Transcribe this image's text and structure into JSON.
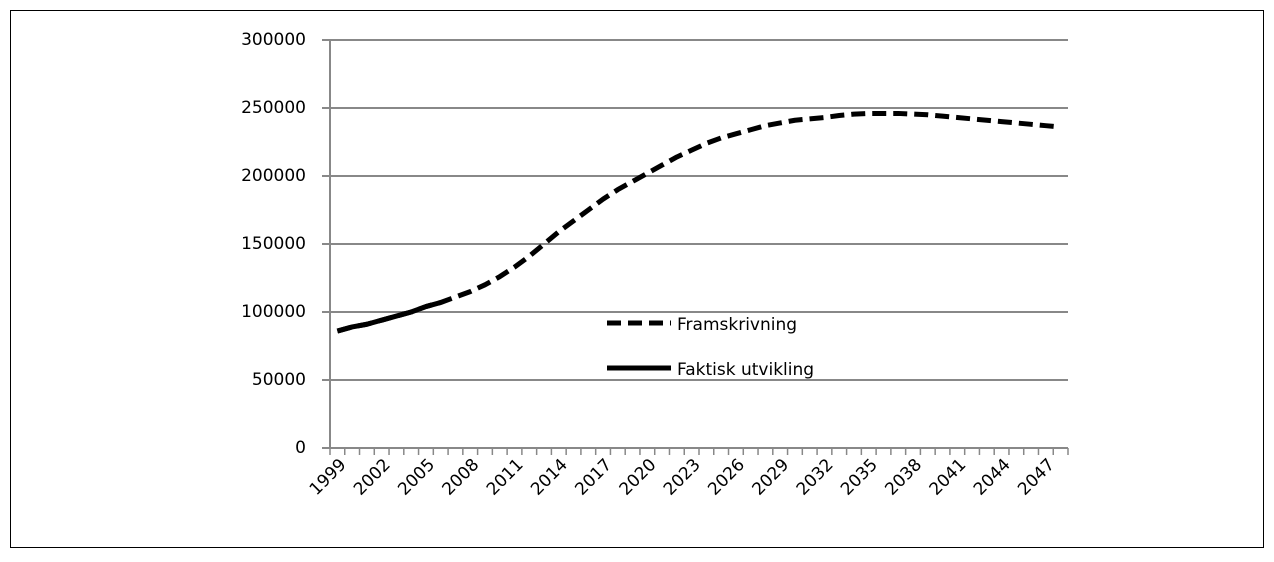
{
  "chart_data": {
    "type": "line",
    "categories": [
      "1999",
      null,
      null,
      "2002",
      null,
      null,
      "2005",
      null,
      null,
      "2008",
      null,
      null,
      "2011",
      null,
      null,
      "2014",
      null,
      null,
      "2017",
      null,
      null,
      "2020",
      null,
      null,
      "2023",
      null,
      null,
      "2026",
      null,
      null,
      "2029",
      null,
      null,
      "2032",
      null,
      null,
      "2035",
      null,
      null,
      "2038",
      null,
      null,
      "2041",
      null,
      null,
      "2044",
      null,
      null,
      "2047",
      null
    ],
    "series": [
      {
        "name": "Framskrivning",
        "color": "#000000",
        "dash": true,
        "values": [
          86000,
          89000,
          91000,
          94000,
          97000,
          100000,
          104000,
          107000,
          111000,
          115000,
          120000,
          126000,
          133000,
          141000,
          150000,
          159000,
          167000,
          175000,
          183000,
          190000,
          196000,
          202000,
          208000,
          214000,
          219000,
          224000,
          228000,
          231000,
          234000,
          237000,
          239000,
          241000,
          242000,
          243000,
          244500,
          245500,
          246000,
          246000,
          246000,
          245500,
          245000,
          244000,
          243000,
          242000,
          241000,
          240000,
          239000,
          238000,
          237000,
          236000
        ]
      },
      {
        "name": "Faktisk utvikling",
        "color": "#000000",
        "dash": false,
        "values": [
          86000,
          89000,
          91000,
          94000,
          97000,
          100000,
          104000,
          107000,
          null,
          null,
          null,
          null,
          null,
          null,
          null,
          null,
          null,
          null,
          null,
          null,
          null,
          null,
          null,
          null,
          null,
          null,
          null,
          null,
          null,
          null,
          null,
          null,
          null,
          null,
          null,
          null,
          null,
          null,
          null,
          null,
          null,
          null,
          null,
          null,
          null,
          null,
          null,
          null,
          null,
          null
        ]
      }
    ],
    "ylim": [
      0,
      300000
    ],
    "yticks": [
      0,
      50000,
      100000,
      150000,
      200000,
      250000,
      300000
    ],
    "grid": true,
    "legend": "center"
  }
}
